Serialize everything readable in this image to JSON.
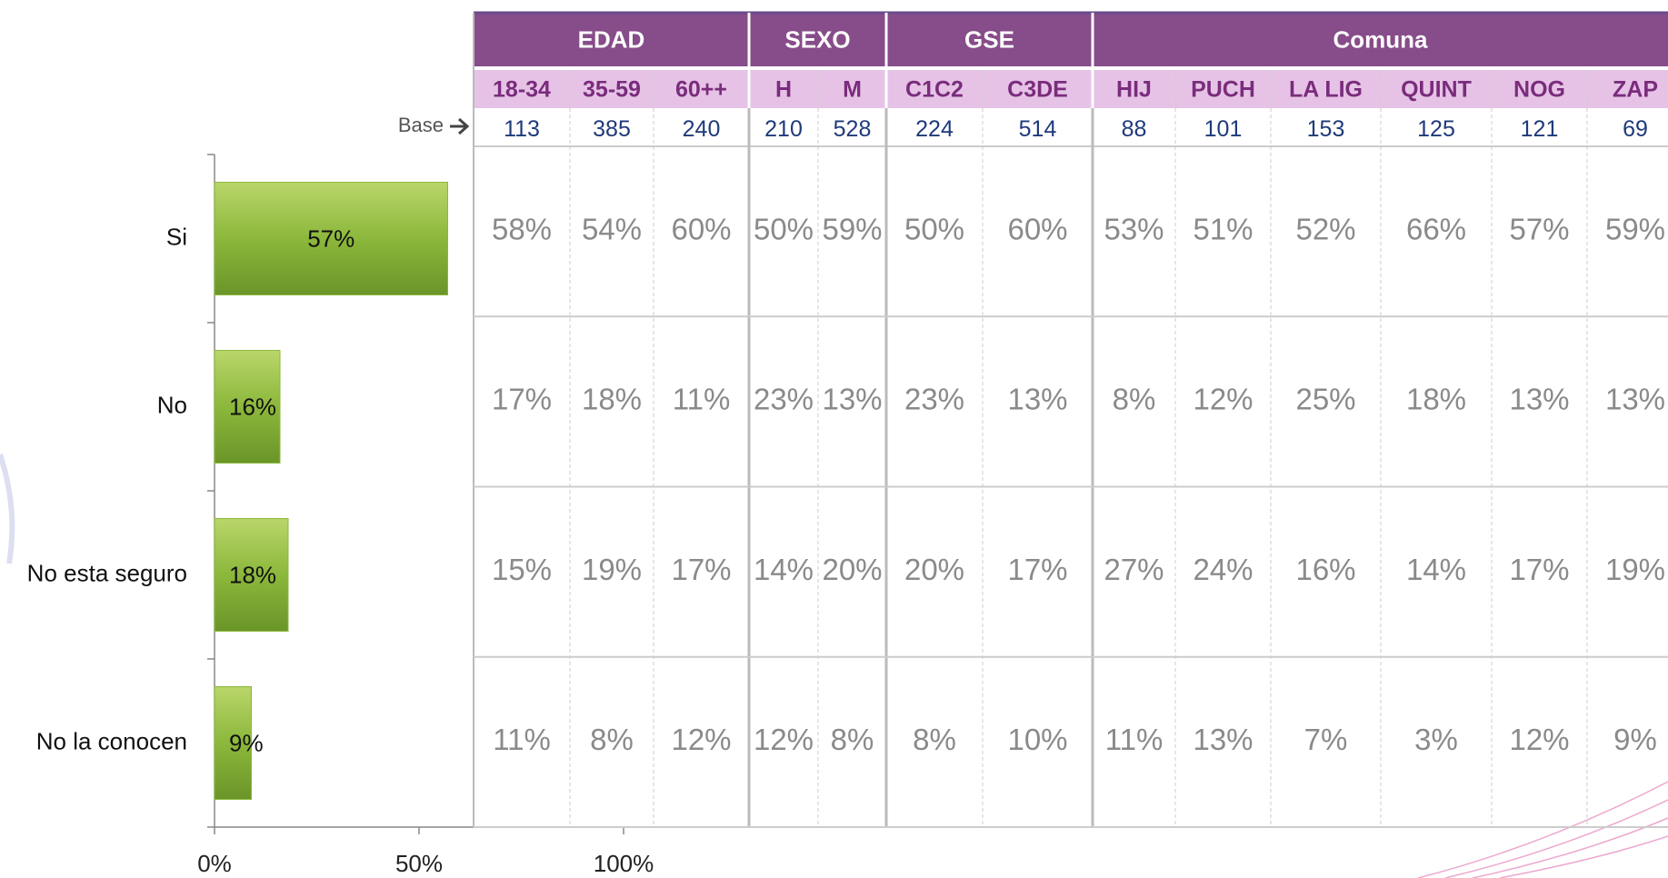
{
  "chart_data": {
    "type": "bar",
    "orientation": "horizontal",
    "categories": [
      "Si",
      "No",
      "No esta seguro",
      "No la conocen"
    ],
    "values": [
      57,
      16,
      18,
      9
    ],
    "value_labels": [
      "57%",
      "16%",
      "18%",
      "9%"
    ],
    "color": "#8cb83c",
    "xlim": [
      0,
      100
    ],
    "xticks": [
      {
        "value": 0,
        "label": "0%"
      },
      {
        "value": 50,
        "label": "50%"
      },
      {
        "value": 100,
        "label": "100%"
      }
    ]
  },
  "table": {
    "groups": [
      {
        "label": "EDAD",
        "columns": [
          "18-34",
          "35-59",
          "60++"
        ]
      },
      {
        "label": "SEXO",
        "columns": [
          "H",
          "M"
        ]
      },
      {
        "label": "GSE",
        "columns": [
          "C1C2",
          "C3DE"
        ]
      },
      {
        "label": "Comuna",
        "columns": [
          "HIJ",
          "PUCH",
          "LA LIG",
          "QUINT",
          "NOG",
          "ZAP"
        ]
      }
    ],
    "base_label": "Base",
    "base": [
      113,
      385,
      240,
      210,
      528,
      224,
      514,
      88,
      101,
      153,
      125,
      121,
      69
    ],
    "rows": [
      [
        "58%",
        "54%",
        "60%",
        "50%",
        "59%",
        "50%",
        "60%",
        "53%",
        "51%",
        "52%",
        "66%",
        "57%",
        "59%"
      ],
      [
        "17%",
        "18%",
        "11%",
        "23%",
        "13%",
        "23%",
        "13%",
        "8%",
        "12%",
        "25%",
        "18%",
        "13%",
        "13%"
      ],
      [
        "15%",
        "19%",
        "17%",
        "14%",
        "20%",
        "20%",
        "17%",
        "27%",
        "24%",
        "16%",
        "14%",
        "17%",
        "19%"
      ],
      [
        "11%",
        "8%",
        "12%",
        "12%",
        "8%",
        "8%",
        "10%",
        "11%",
        "13%",
        "7%",
        "3%",
        "12%",
        "9%"
      ]
    ]
  }
}
